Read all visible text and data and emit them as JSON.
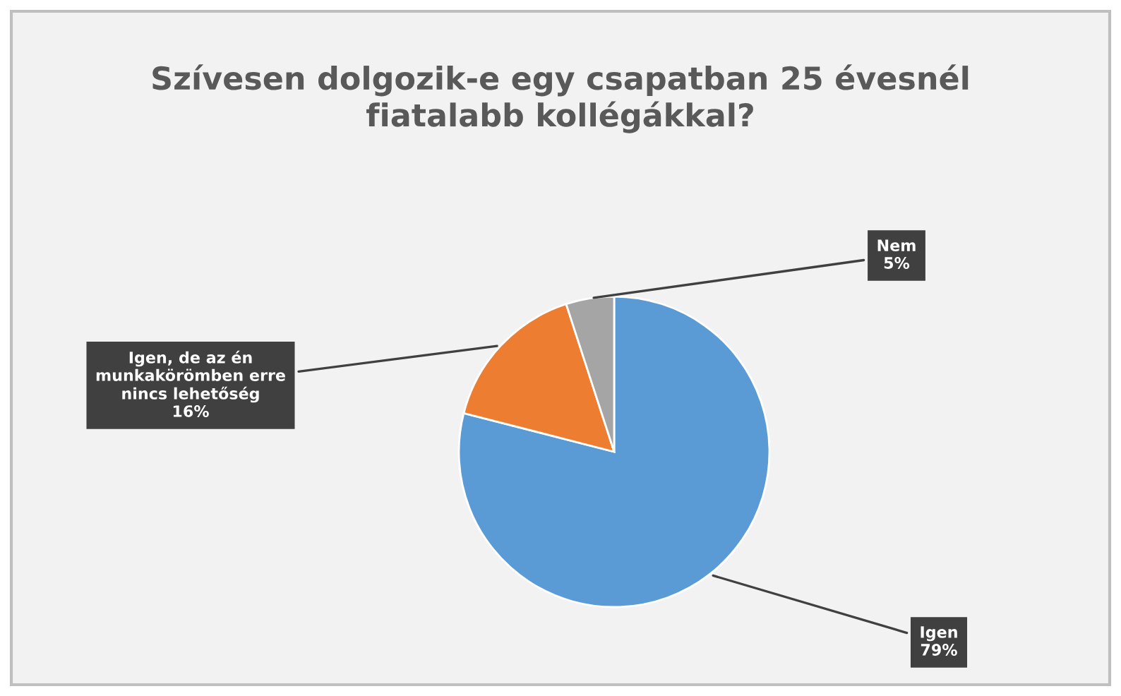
{
  "chart_data": {
    "type": "pie",
    "title": "Szívesen dolgozik-e egy csapatban 25 évesnél fiatalabb kollégákkal?",
    "categories": [
      "Igen",
      "Igen, de az én munkakörömben erre nincs lehetőség",
      "Nem"
    ],
    "values": [
      79,
      16,
      5
    ],
    "value_labels": [
      "79%",
      "16%",
      "5%"
    ],
    "colors": [
      "#5b9bd5",
      "#ed7d31",
      "#a5a5a5"
    ],
    "legend": false
  }
}
